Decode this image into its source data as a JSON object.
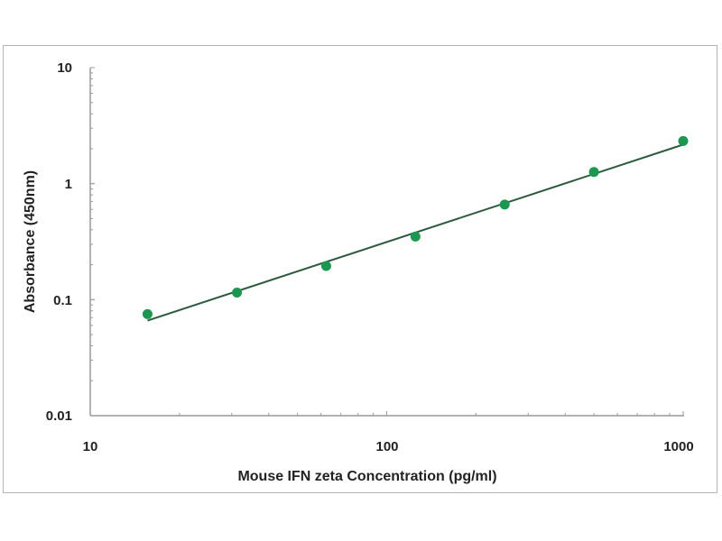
{
  "chart_data": {
    "type": "scatter",
    "title": "",
    "xlabel": "Mouse IFN zeta Concentration (pg/ml)",
    "ylabel": "Absorbance (450nm)",
    "x_scale": "log",
    "y_scale": "log",
    "xlim": [
      10,
      1000
    ],
    "ylim": [
      0.01,
      10
    ],
    "x_ticks": [
      "10",
      "100",
      "1000"
    ],
    "y_ticks": [
      "0.01",
      "0.1",
      "1",
      "10"
    ],
    "grid": false,
    "color": "#1a9850",
    "line_color": "#2d5a3d",
    "points": {
      "x": [
        15.6,
        31.25,
        62.5,
        125,
        250,
        500,
        1000
      ],
      "y": [
        0.075,
        0.115,
        0.195,
        0.35,
        0.66,
        1.26,
        2.33
      ]
    },
    "fit_line": {
      "x": [
        15.6,
        1000
      ],
      "y": [
        0.066,
        2.17
      ]
    }
  }
}
